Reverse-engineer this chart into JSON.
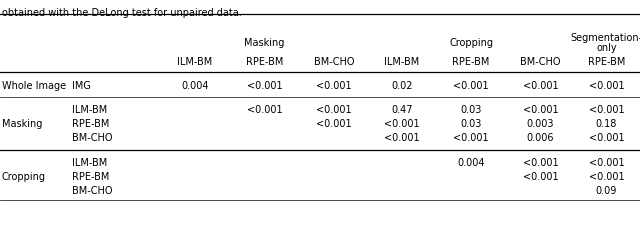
{
  "title_top": "obtained with the DeLong test for unpaired data.",
  "sub_headers": [
    "ILM-BM",
    "RPE-BM",
    "BM-CHO",
    "ILM-BM",
    "RPE-BM",
    "BM-CHO",
    "RPE-BM"
  ],
  "rows": [
    [
      "Whole Image",
      "IMG",
      "0.004",
      "<0.001",
      "<0.001",
      "0.02",
      "<0.001",
      "<0.001",
      "<0.001"
    ],
    [
      "Masking",
      "ILM-BM",
      "",
      "<0.001",
      "<0.001",
      "0.47",
      "0.03",
      "<0.001",
      "<0.001"
    ],
    [
      "",
      "RPE-BM",
      "",
      "",
      "<0.001",
      "<0.001",
      "0.03",
      "0.003",
      "0.18"
    ],
    [
      "",
      "BM-CHO",
      "",
      "",
      "",
      "<0.001",
      "<0.001",
      "0.006",
      "<0.001"
    ],
    [
      "Cropping",
      "ILM-BM",
      "",
      "",
      "",
      "",
      "0.004",
      "<0.001",
      "<0.001"
    ],
    [
      "",
      "RPE-BM",
      "",
      "",
      "",
      "",
      "",
      "<0.001",
      "<0.001"
    ],
    [
      "",
      "BM-CHO",
      "",
      "",
      "",
      "",
      "",
      "",
      "0.09"
    ]
  ],
  "bg_color": "#ffffff",
  "line_color": "#000000",
  "text_color": "#000000",
  "font_size": 7.0
}
